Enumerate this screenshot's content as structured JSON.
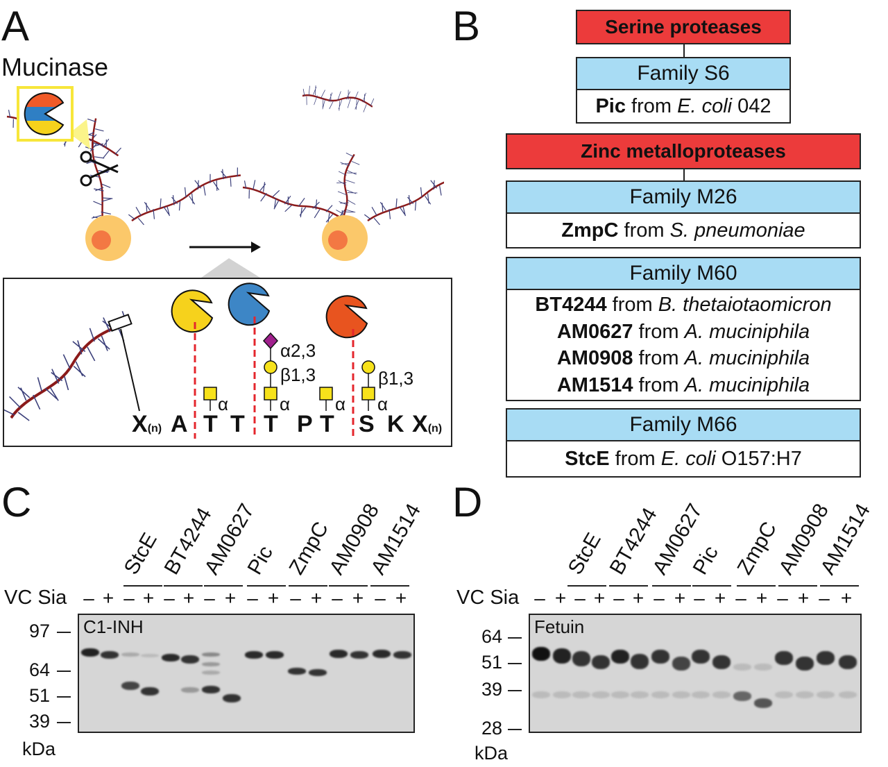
{
  "panels": {
    "a": "A",
    "b": "B",
    "c": "C",
    "d": "D"
  },
  "panel_a": {
    "title": "Mucinase",
    "sequence": [
      "X",
      "A",
      "T",
      "T",
      "T",
      "P",
      "T",
      "S",
      "K",
      "X"
    ],
    "subscript": "(n)",
    "glycan_links": {
      "alpha": "α",
      "a23": "α2,3",
      "b13_1": "β1,3",
      "b13_2": "β1,3"
    },
    "enzyme_colors": {
      "yellow": "#f6d21c",
      "blue": "#3d86c6",
      "orange": "#e8541f"
    }
  },
  "panel_b": {
    "serine_title": "Serine proteases",
    "s6_family": "Family S6",
    "s6_entry": {
      "name": "Pic",
      "from": " from ",
      "organism": "E. coli",
      "strain": " 042"
    },
    "zinc_title": "Zinc metalloproteases",
    "m26_family": "Family M26",
    "m26_entry": {
      "name": "ZmpC",
      "from": " from ",
      "organism": "S. pneumoniae"
    },
    "m60_family": "Family M60",
    "m60_entries": [
      {
        "name": "BT4244",
        "from": " from ",
        "organism": "B. thetaiotaomicron"
      },
      {
        "name": "AM0627",
        "from": " from ",
        "organism": "A. muciniphila"
      },
      {
        "name": "AM0908",
        "from": " from ",
        "organism": "A. muciniphila"
      },
      {
        "name": "AM1514",
        "from": " from ",
        "organism": "A. muciniphila"
      }
    ],
    "m66_family": "Family M66",
    "m66_entry": {
      "name": "StcE",
      "from": " from ",
      "organism": "E. coli",
      "strain": " O157:H7"
    }
  },
  "panel_c": {
    "lane_groups": [
      "StcE",
      "BT4244",
      "AM0627",
      "Pic",
      "ZmpC",
      "AM0908",
      "AM1514"
    ],
    "row_label": "VC Sia",
    "signs": [
      "–",
      "+",
      "–",
      "+",
      "–",
      "+",
      "–",
      "+",
      "–",
      "+",
      "–",
      "+",
      "–",
      "+",
      "–",
      "+"
    ],
    "gel_label": "C1-INH",
    "mw_markers": [
      "97",
      "64",
      "51",
      "39"
    ],
    "mw_unit": "kDa"
  },
  "panel_d": {
    "lane_groups": [
      "StcE",
      "BT4244",
      "AM0627",
      "Pic",
      "ZmpC",
      "AM0908",
      "AM1514"
    ],
    "row_label": "VC Sia",
    "signs": [
      "–",
      "+",
      "–",
      "+",
      "–",
      "+",
      "–",
      "+",
      "–",
      "+",
      "–",
      "+",
      "–",
      "+",
      "–",
      "+"
    ],
    "gel_label": "Fetuin",
    "mw_markers": [
      "64",
      "51",
      "39",
      "28"
    ],
    "mw_unit": "kDa"
  }
}
